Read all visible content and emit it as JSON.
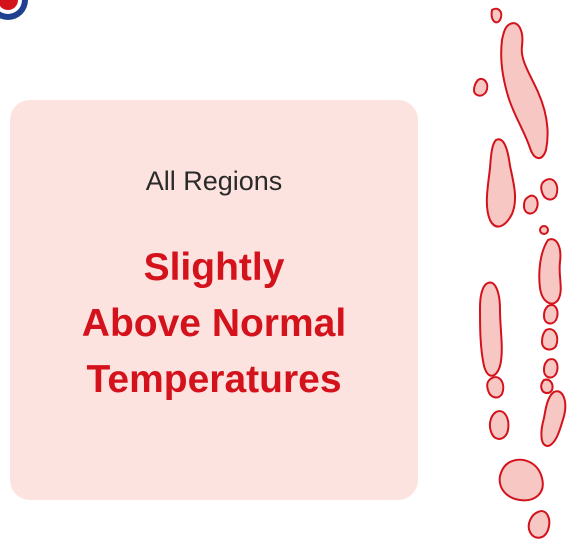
{
  "colors": {
    "accent_red": "#d4121c",
    "card_background": "#fde3df",
    "island_fill": "#f7c8c3",
    "logo_blue": "#1f3f8f",
    "label_text": "#2a2a2a"
  },
  "icons": {
    "logo": "circular-emblem-icon",
    "map": "islands-map-icon"
  },
  "card": {
    "region": "All Regions",
    "headline_line1": "Slightly",
    "headline_line2": "Above Normal",
    "headline_line3": "Temperatures"
  }
}
